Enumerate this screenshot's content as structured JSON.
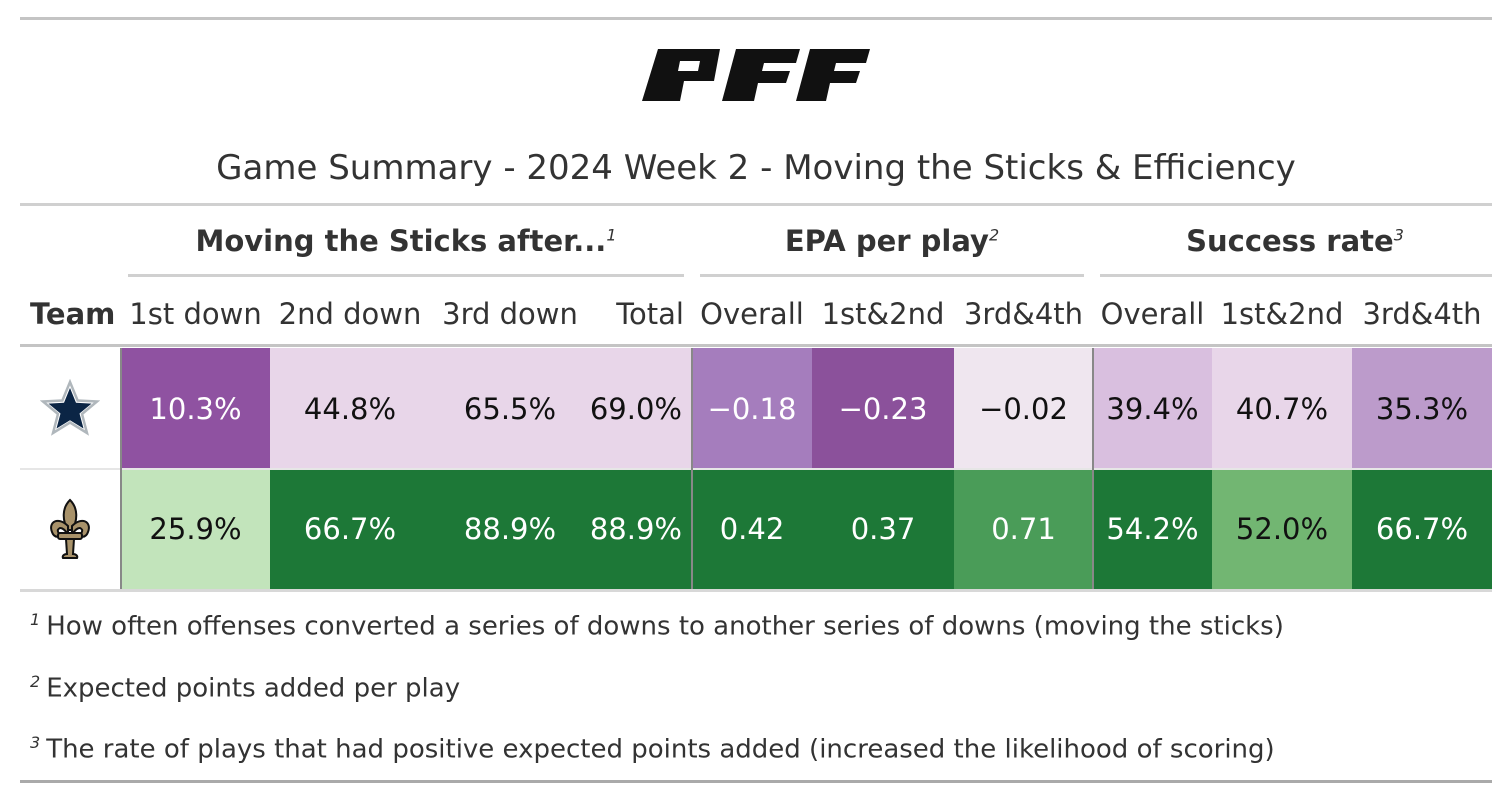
{
  "title": "Game Summary - 2024 Week 2 - Moving the Sticks & Efficiency",
  "logo_text": "PFF",
  "groups": [
    {
      "label": "Moving the Sticks after...",
      "note": "1"
    },
    {
      "label": "EPA per play",
      "note": "2"
    },
    {
      "label": "Success rate",
      "note": "3"
    }
  ],
  "columns": [
    "Team",
    "1st down",
    "2nd down",
    "3rd down",
    "Total",
    "Overall",
    "1st&2nd",
    "3rd&4th",
    "Overall",
    "1st&2nd",
    "3rd&4th"
  ],
  "chart_data": {
    "type": "table",
    "title": "Game Summary - 2024 Week 2 - Moving the Sticks & Efficiency",
    "rows": [
      {
        "team_icon": "dallas-cowboys-star-icon",
        "values": [
          "10.3%",
          "44.8%",
          "65.5%",
          "69.0%",
          "−0.18",
          "−0.23",
          "−0.02",
          "39.4%",
          "40.7%",
          "35.3%"
        ],
        "colors": [
          "#8f52a1",
          "#e8d6e9",
          "#e8d6e9",
          "#e8d6e9",
          "#a57dbd",
          "#8b519b",
          "#efe6ef",
          "#d9bfdf",
          "#e8d6e9",
          "#bc9bcb"
        ],
        "text_colors": [
          "#ffffff",
          "#111111",
          "#111111",
          "#111111",
          "#ffffff",
          "#ffffff",
          "#111111",
          "#111111",
          "#111111",
          "#111111"
        ]
      },
      {
        "team_icon": "new-orleans-saints-fleur-de-lis-icon",
        "values": [
          "25.9%",
          "66.7%",
          "88.9%",
          "88.9%",
          "0.42",
          "0.37",
          "0.71",
          "54.2%",
          "52.0%",
          "66.7%"
        ],
        "colors": [
          "#c2e4bb",
          "#1d7837",
          "#1d7837",
          "#1d7837",
          "#1d7837",
          "#1d7837",
          "#4a9c58",
          "#1d7837",
          "#72b672",
          "#1d7837"
        ],
        "text_colors": [
          "#111111",
          "#ffffff",
          "#ffffff",
          "#ffffff",
          "#ffffff",
          "#ffffff",
          "#ffffff",
          "#ffffff",
          "#111111",
          "#ffffff"
        ]
      }
    ]
  },
  "footnotes": [
    {
      "mark": "1",
      "text": "How often offenses converted a series of downs to another series of downs (moving the sticks)"
    },
    {
      "mark": "2",
      "text": "Expected points added per play"
    },
    {
      "mark": "3",
      "text": "The rate of plays that had positive expected points added (increased the likelihood of scoring)"
    }
  ]
}
